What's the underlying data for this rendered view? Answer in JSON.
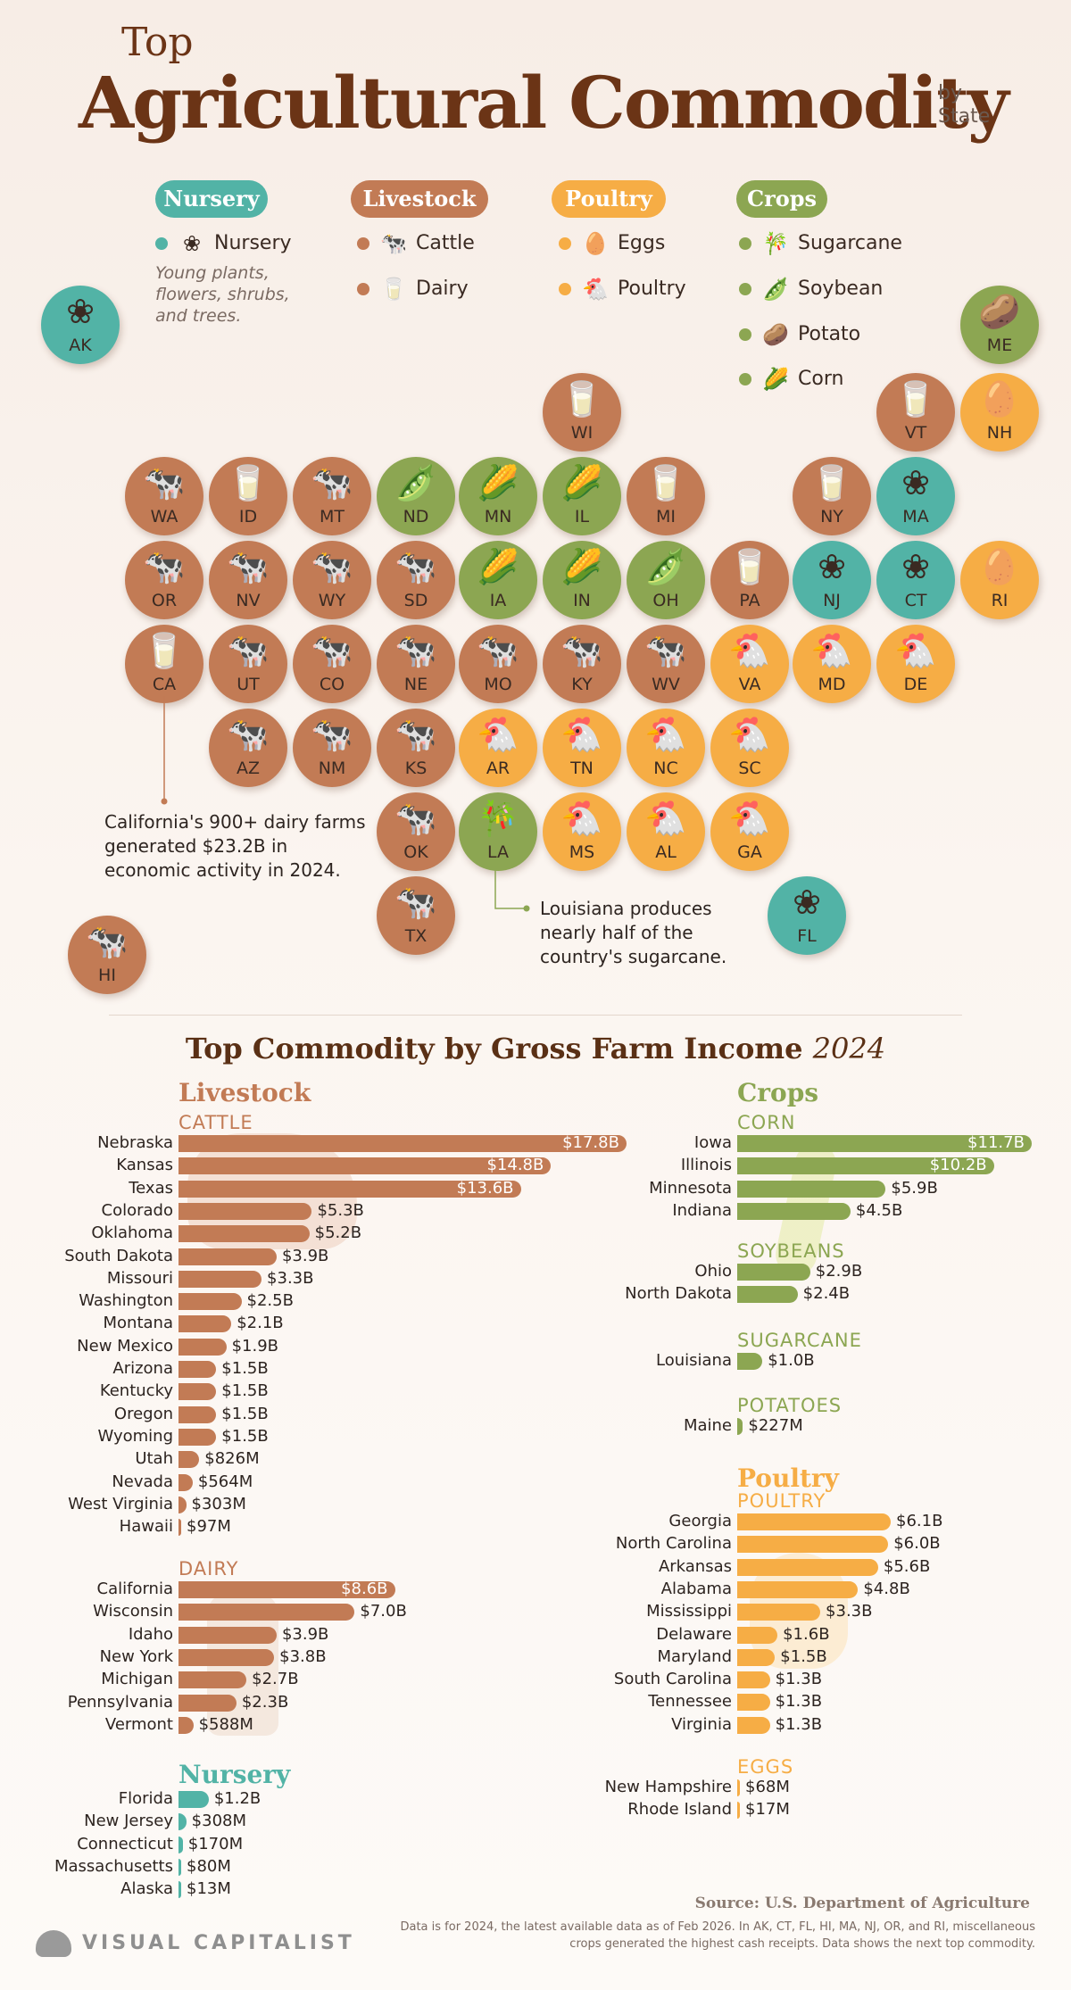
{
  "header": {
    "top": "Top",
    "title": "Agricultural Commodity",
    "by": "by",
    "state": "State"
  },
  "colors": {
    "Nursery": "#52b3a6",
    "Livestock": "#c27b55",
    "Poultry": "#f6ad45",
    "Crops": "#8ca652"
  },
  "legend": {
    "groups": [
      {
        "name": "Nursery",
        "items": [
          {
            "label": "Nursery",
            "icon": "flower-icon"
          }
        ],
        "note": "Young plants, flowers, shrubs, and trees."
      },
      {
        "name": "Livestock",
        "items": [
          {
            "label": "Cattle",
            "icon": "cow-icon"
          },
          {
            "label": "Dairy",
            "icon": "milk-bottle-icon"
          }
        ]
      },
      {
        "name": "Poultry",
        "items": [
          {
            "label": "Eggs",
            "icon": "egg-icon"
          },
          {
            "label": "Poultry",
            "icon": "chicken-icon"
          }
        ]
      },
      {
        "name": "Crops",
        "items": [
          {
            "label": "Sugarcane",
            "icon": "sugarcane-icon"
          },
          {
            "label": "Soybean",
            "icon": "soybean-icon"
          },
          {
            "label": "Potato",
            "icon": "potato-icon"
          },
          {
            "label": "Corn",
            "icon": "corn-icon"
          }
        ]
      }
    ]
  },
  "map_states": [
    {
      "ab": "AK",
      "c": "Nursery",
      "item": "Nursery"
    },
    {
      "ab": "ME",
      "c": "Crops",
      "item": "Potato"
    },
    {
      "ab": "WI",
      "c": "Livestock",
      "item": "Dairy"
    },
    {
      "ab": "VT",
      "c": "Livestock",
      "item": "Dairy"
    },
    {
      "ab": "NH",
      "c": "Poultry",
      "item": "Eggs"
    },
    {
      "ab": "WA",
      "c": "Livestock",
      "item": "Cattle"
    },
    {
      "ab": "ID",
      "c": "Livestock",
      "item": "Dairy"
    },
    {
      "ab": "MT",
      "c": "Livestock",
      "item": "Cattle"
    },
    {
      "ab": "ND",
      "c": "Crops",
      "item": "Soybean"
    },
    {
      "ab": "MN",
      "c": "Crops",
      "item": "Corn"
    },
    {
      "ab": "IL",
      "c": "Crops",
      "item": "Corn"
    },
    {
      "ab": "MI",
      "c": "Livestock",
      "item": "Dairy"
    },
    {
      "ab": "NY",
      "c": "Livestock",
      "item": "Dairy"
    },
    {
      "ab": "MA",
      "c": "Nursery",
      "item": "Nursery"
    },
    {
      "ab": "OR",
      "c": "Livestock",
      "item": "Cattle"
    },
    {
      "ab": "NV",
      "c": "Livestock",
      "item": "Cattle"
    },
    {
      "ab": "WY",
      "c": "Livestock",
      "item": "Cattle"
    },
    {
      "ab": "SD",
      "c": "Livestock",
      "item": "Cattle"
    },
    {
      "ab": "IA",
      "c": "Crops",
      "item": "Corn"
    },
    {
      "ab": "IN",
      "c": "Crops",
      "item": "Corn"
    },
    {
      "ab": "OH",
      "c": "Crops",
      "item": "Soybean"
    },
    {
      "ab": "PA",
      "c": "Livestock",
      "item": "Dairy"
    },
    {
      "ab": "NJ",
      "c": "Nursery",
      "item": "Nursery"
    },
    {
      "ab": "CT",
      "c": "Nursery",
      "item": "Nursery"
    },
    {
      "ab": "RI",
      "c": "Poultry",
      "item": "Eggs"
    },
    {
      "ab": "CA",
      "c": "Livestock",
      "item": "Dairy"
    },
    {
      "ab": "UT",
      "c": "Livestock",
      "item": "Cattle"
    },
    {
      "ab": "CO",
      "c": "Livestock",
      "item": "Cattle"
    },
    {
      "ab": "NE",
      "c": "Livestock",
      "item": "Cattle"
    },
    {
      "ab": "MO",
      "c": "Livestock",
      "item": "Cattle"
    },
    {
      "ab": "KY",
      "c": "Livestock",
      "item": "Cattle"
    },
    {
      "ab": "WV",
      "c": "Livestock",
      "item": "Cattle"
    },
    {
      "ab": "VA",
      "c": "Poultry",
      "item": "Poultry"
    },
    {
      "ab": "MD",
      "c": "Poultry",
      "item": "Poultry"
    },
    {
      "ab": "DE",
      "c": "Poultry",
      "item": "Poultry"
    },
    {
      "ab": "AZ",
      "c": "Livestock",
      "item": "Cattle"
    },
    {
      "ab": "NM",
      "c": "Livestock",
      "item": "Cattle"
    },
    {
      "ab": "KS",
      "c": "Livestock",
      "item": "Cattle"
    },
    {
      "ab": "AR",
      "c": "Poultry",
      "item": "Poultry"
    },
    {
      "ab": "TN",
      "c": "Poultry",
      "item": "Poultry"
    },
    {
      "ab": "NC",
      "c": "Poultry",
      "item": "Poultry"
    },
    {
      "ab": "SC",
      "c": "Poultry",
      "item": "Poultry"
    },
    {
      "ab": "OK",
      "c": "Livestock",
      "item": "Cattle"
    },
    {
      "ab": "LA",
      "c": "Crops",
      "item": "Sugarcane"
    },
    {
      "ab": "MS",
      "c": "Poultry",
      "item": "Poultry"
    },
    {
      "ab": "AL",
      "c": "Poultry",
      "item": "Poultry"
    },
    {
      "ab": "GA",
      "c": "Poultry",
      "item": "Poultry"
    },
    {
      "ab": "TX",
      "c": "Livestock",
      "item": "Cattle"
    },
    {
      "ab": "FL",
      "c": "Nursery",
      "item": "Nursery"
    },
    {
      "ab": "HI",
      "c": "Livestock",
      "item": "Cattle"
    }
  ],
  "annotations": {
    "california": "California's 900+ dairy farms generated $23.2B in economic activity in 2024.",
    "louisiana": "Louisiana produces nearly half of the country's sugarcane."
  },
  "section2": {
    "title": "Top Commodity by Gross Farm Income",
    "year": "2024"
  },
  "chart_data": {
    "type": "bar",
    "title": "Top Commodity by Gross Farm Income 2024",
    "unit": "USD",
    "groups": [
      {
        "name": "Livestock",
        "color": "#c27b55",
        "series": [
          {
            "name": "CATTLE",
            "bars": [
              {
                "label": "Nebraska",
                "value": 17.8,
                "text": "$17.8B"
              },
              {
                "label": "Kansas",
                "value": 14.8,
                "text": "$14.8B"
              },
              {
                "label": "Texas",
                "value": 13.6,
                "text": "$13.6B"
              },
              {
                "label": "Colorado",
                "value": 5.3,
                "text": "$5.3B"
              },
              {
                "label": "Oklahoma",
                "value": 5.2,
                "text": "$5.2B"
              },
              {
                "label": "South Dakota",
                "value": 3.9,
                "text": "$3.9B"
              },
              {
                "label": "Missouri",
                "value": 3.3,
                "text": "$3.3B"
              },
              {
                "label": "Washington",
                "value": 2.5,
                "text": "$2.5B"
              },
              {
                "label": "Montana",
                "value": 2.1,
                "text": "$2.1B"
              },
              {
                "label": "New Mexico",
                "value": 1.9,
                "text": "$1.9B"
              },
              {
                "label": "Arizona",
                "value": 1.5,
                "text": "$1.5B"
              },
              {
                "label": "Kentucky",
                "value": 1.5,
                "text": "$1.5B"
              },
              {
                "label": "Oregon",
                "value": 1.5,
                "text": "$1.5B"
              },
              {
                "label": "Wyoming",
                "value": 1.5,
                "text": "$1.5B"
              },
              {
                "label": "Utah",
                "value": 0.826,
                "text": "$826M"
              },
              {
                "label": "Nevada",
                "value": 0.564,
                "text": "$564M"
              },
              {
                "label": "West Virginia",
                "value": 0.303,
                "text": "$303M"
              },
              {
                "label": "Hawaii",
                "value": 0.097,
                "text": "$97M"
              }
            ]
          },
          {
            "name": "DAIRY",
            "bars": [
              {
                "label": "California",
                "value": 8.6,
                "text": "$8.6B"
              },
              {
                "label": "Wisconsin",
                "value": 7.0,
                "text": "$7.0B"
              },
              {
                "label": "Idaho",
                "value": 3.9,
                "text": "$3.9B"
              },
              {
                "label": "New York",
                "value": 3.8,
                "text": "$3.8B"
              },
              {
                "label": "Michigan",
                "value": 2.7,
                "text": "$2.7B"
              },
              {
                "label": "Pennsylvania",
                "value": 2.3,
                "text": "$2.3B"
              },
              {
                "label": "Vermont",
                "value": 0.588,
                "text": "$588M"
              }
            ]
          }
        ]
      },
      {
        "name": "Nursery",
        "color": "#52b3a6",
        "series": [
          {
            "name": "",
            "bars": [
              {
                "label": "Florida",
                "value": 1.2,
                "text": "$1.2B"
              },
              {
                "label": "New Jersey",
                "value": 0.308,
                "text": "$308M"
              },
              {
                "label": "Connecticut",
                "value": 0.17,
                "text": "$170M"
              },
              {
                "label": "Massachusetts",
                "value": 0.08,
                "text": "$80M"
              },
              {
                "label": "Alaska",
                "value": 0.013,
                "text": "$13M"
              }
            ]
          }
        ]
      },
      {
        "name": "Crops",
        "color": "#8ca652",
        "series": [
          {
            "name": "CORN",
            "bars": [
              {
                "label": "Iowa",
                "value": 11.7,
                "text": "$11.7B"
              },
              {
                "label": "Illinois",
                "value": 10.2,
                "text": "$10.2B"
              },
              {
                "label": "Minnesota",
                "value": 5.9,
                "text": "$5.9B"
              },
              {
                "label": "Indiana",
                "value": 4.5,
                "text": "$4.5B"
              }
            ]
          },
          {
            "name": "SOYBEANS",
            "bars": [
              {
                "label": "Ohio",
                "value": 2.9,
                "text": "$2.9B"
              },
              {
                "label": "North Dakota",
                "value": 2.4,
                "text": "$2.4B"
              }
            ]
          },
          {
            "name": "SUGARCANE",
            "bars": [
              {
                "label": "Louisiana",
                "value": 1.0,
                "text": "$1.0B"
              }
            ]
          },
          {
            "name": "POTATOES",
            "bars": [
              {
                "label": "Maine",
                "value": 0.227,
                "text": "$227M"
              }
            ]
          }
        ]
      },
      {
        "name": "Poultry",
        "color": "#f6ad45",
        "series": [
          {
            "name": "POULTRY",
            "bars": [
              {
                "label": "Georgia",
                "value": 6.1,
                "text": "$6.1B"
              },
              {
                "label": "North Carolina",
                "value": 6.0,
                "text": "$6.0B"
              },
              {
                "label": "Arkansas",
                "value": 5.6,
                "text": "$5.6B"
              },
              {
                "label": "Alabama",
                "value": 4.8,
                "text": "$4.8B"
              },
              {
                "label": "Mississippi",
                "value": 3.3,
                "text": "$3.3B"
              },
              {
                "label": "Delaware",
                "value": 1.6,
                "text": "$1.6B"
              },
              {
                "label": "Maryland",
                "value": 1.5,
                "text": "$1.5B"
              },
              {
                "label": "South Carolina",
                "value": 1.3,
                "text": "$1.3B"
              },
              {
                "label": "Tennessee",
                "value": 1.3,
                "text": "$1.3B"
              },
              {
                "label": "Virginia",
                "value": 1.3,
                "text": "$1.3B"
              }
            ]
          },
          {
            "name": "EGGS",
            "bars": [
              {
                "label": "New Hampshire",
                "value": 0.068,
                "text": "$68M"
              },
              {
                "label": "Rhode Island",
                "value": 0.017,
                "text": "$17M"
              }
            ]
          }
        ]
      }
    ]
  },
  "footer": {
    "source": "Source: U.S. Department of Agriculture",
    "note": "Data is for 2024, the latest available data as of Feb 2026. In AK, CT, FL, HI, MA, NJ, OR, and RI, miscellaneous crops generated the highest cash receipts. Data shows the next top commodity.",
    "brand": "VISUAL CAPITALIST"
  }
}
